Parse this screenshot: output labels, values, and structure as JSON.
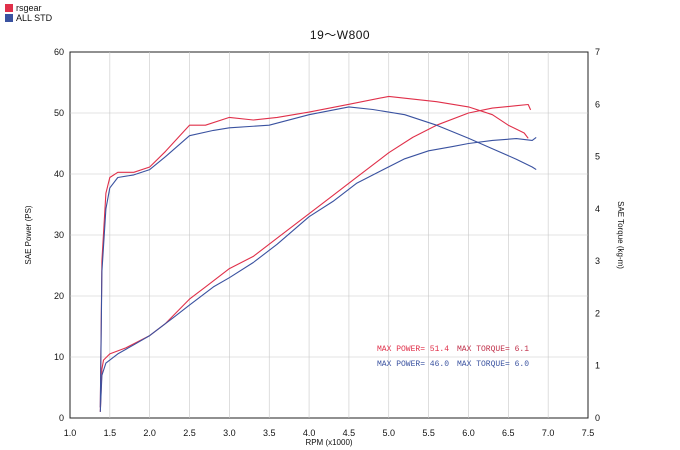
{
  "legend": [
    {
      "name": "rsgear",
      "color": "#e0304a"
    },
    {
      "name": "ALL STD",
      "color": "#3a52a0"
    }
  ],
  "colors": {
    "rsgear": "#e0304a",
    "std": "#3a52a0",
    "grid": "#c8c8c8"
  },
  "chart_data": {
    "type": "line",
    "title": "19～W800",
    "xlabel": "RPM (x1000)",
    "ylabel_left": "SAE Power (PS)",
    "ylabel_right": "SAE Torque (kg-m)",
    "xlim": [
      1.0,
      7.5
    ],
    "ylim_left": [
      0,
      60
    ],
    "ylim_right": [
      0,
      7
    ],
    "x_ticks": [
      "1.0",
      "1.5",
      "2.0",
      "2.5",
      "3.0",
      "3.5",
      "4.0",
      "4.5",
      "5.0",
      "5.5",
      "6.0",
      "6.5",
      "7.0",
      "7.5"
    ],
    "y_ticks_left": [
      "0",
      "10",
      "20",
      "30",
      "40",
      "50",
      "60"
    ],
    "y_ticks_right": [
      "0",
      "1",
      "2",
      "3",
      "4",
      "5",
      "6",
      "7"
    ],
    "grid": true,
    "series": [
      {
        "name": "rsgear",
        "kind": "power",
        "axis": "left",
        "color": "#e0304a",
        "points": [
          [
            1.38,
            1
          ],
          [
            1.4,
            8
          ],
          [
            1.42,
            9.5
          ],
          [
            1.5,
            10.5
          ],
          [
            1.7,
            11.5
          ],
          [
            2.0,
            13.5
          ],
          [
            2.2,
            15.5
          ],
          [
            2.5,
            19.5
          ],
          [
            2.7,
            21.5
          ],
          [
            3.0,
            24.5
          ],
          [
            3.3,
            26.5
          ],
          [
            3.6,
            29.5
          ],
          [
            4.0,
            33.5
          ],
          [
            4.3,
            36.5
          ],
          [
            4.6,
            39.5
          ],
          [
            5.0,
            43.5
          ],
          [
            5.3,
            46
          ],
          [
            5.6,
            48
          ],
          [
            6.0,
            50
          ],
          [
            6.3,
            50.8
          ],
          [
            6.6,
            51.2
          ],
          [
            6.75,
            51.4
          ],
          [
            6.78,
            50.5
          ]
        ]
      },
      {
        "name": "ALL STD",
        "kind": "power",
        "axis": "left",
        "color": "#3a52a0",
        "points": [
          [
            1.38,
            1
          ],
          [
            1.4,
            7
          ],
          [
            1.45,
            9
          ],
          [
            1.6,
            10.5
          ],
          [
            1.8,
            12
          ],
          [
            2.0,
            13.5
          ],
          [
            2.3,
            16.5
          ],
          [
            2.5,
            18.5
          ],
          [
            2.8,
            21.5
          ],
          [
            3.0,
            23
          ],
          [
            3.3,
            25.5
          ],
          [
            3.6,
            28.5
          ],
          [
            4.0,
            33
          ],
          [
            4.3,
            35.5
          ],
          [
            4.6,
            38.5
          ],
          [
            4.9,
            40.5
          ],
          [
            5.2,
            42.5
          ],
          [
            5.5,
            43.8
          ],
          [
            5.8,
            44.5
          ],
          [
            6.0,
            45
          ],
          [
            6.3,
            45.5
          ],
          [
            6.6,
            45.8
          ],
          [
            6.8,
            45.5
          ],
          [
            6.85,
            46
          ]
        ]
      },
      {
        "name": "rsgear",
        "kind": "torque",
        "axis": "right",
        "color": "#e0304a",
        "points": [
          [
            1.38,
            0.2
          ],
          [
            1.4,
            3
          ],
          [
            1.45,
            4.3
          ],
          [
            1.5,
            4.6
          ],
          [
            1.6,
            4.7
          ],
          [
            1.8,
            4.7
          ],
          [
            2.0,
            4.8
          ],
          [
            2.2,
            5.1
          ],
          [
            2.5,
            5.6
          ],
          [
            2.7,
            5.6
          ],
          [
            3.0,
            5.75
          ],
          [
            3.3,
            5.7
          ],
          [
            3.6,
            5.75
          ],
          [
            4.0,
            5.85
          ],
          [
            4.5,
            6.0
          ],
          [
            5.0,
            6.15
          ],
          [
            5.3,
            6.1
          ],
          [
            5.6,
            6.05
          ],
          [
            6.0,
            5.95
          ],
          [
            6.3,
            5.8
          ],
          [
            6.5,
            5.6
          ],
          [
            6.7,
            5.45
          ],
          [
            6.75,
            5.35
          ]
        ]
      },
      {
        "name": "ALL STD",
        "kind": "torque",
        "axis": "right",
        "color": "#3a52a0",
        "points": [
          [
            1.38,
            0.2
          ],
          [
            1.4,
            2.8
          ],
          [
            1.45,
            4.0
          ],
          [
            1.5,
            4.4
          ],
          [
            1.6,
            4.6
          ],
          [
            1.8,
            4.65
          ],
          [
            2.0,
            4.75
          ],
          [
            2.2,
            5.0
          ],
          [
            2.5,
            5.4
          ],
          [
            2.8,
            5.5
          ],
          [
            3.0,
            5.55
          ],
          [
            3.5,
            5.6
          ],
          [
            4.0,
            5.8
          ],
          [
            4.5,
            5.95
          ],
          [
            4.8,
            5.9
          ],
          [
            5.2,
            5.8
          ],
          [
            5.6,
            5.6
          ],
          [
            6.0,
            5.35
          ],
          [
            6.3,
            5.15
          ],
          [
            6.6,
            4.95
          ],
          [
            6.8,
            4.8
          ],
          [
            6.85,
            4.75
          ]
        ]
      }
    ],
    "annotations": {
      "rsgear": {
        "power_label": "MAX POWER= 51.4",
        "torque_label": "MAX TORQUE= 6.1"
      },
      "std": {
        "power_label": "MAX POWER= 46.0",
        "torque_label": "MAX TORQUE= 6.0"
      }
    }
  }
}
